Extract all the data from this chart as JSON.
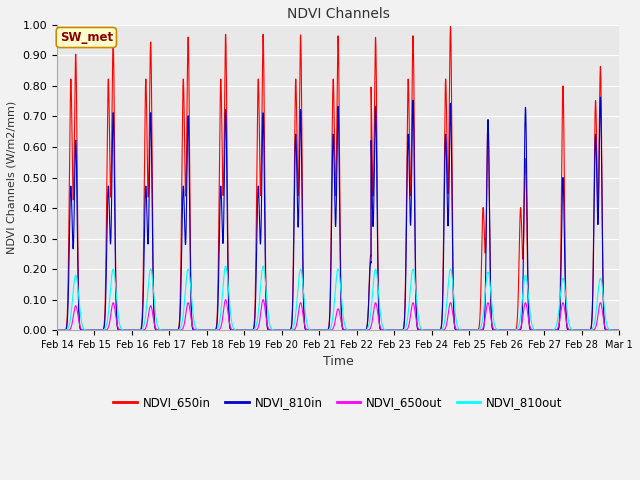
{
  "title": "NDVI Channels",
  "ylabel": "NDVI Channels (W/m2/mm)",
  "xlabel": "Time",
  "annotation": "SW_met",
  "ylim": [
    0.0,
    1.0
  ],
  "yticks": [
    0.0,
    0.1,
    0.2,
    0.3,
    0.4,
    0.5,
    0.6,
    0.7,
    0.8,
    0.9,
    1.0
  ],
  "colors": {
    "NDVI_650in": "#ff0000",
    "NDVI_810in": "#0000cc",
    "NDVI_650out": "#ff00ff",
    "NDVI_810out": "#00ffff"
  },
  "fig_facecolor": "#f2f2f2",
  "ax_facecolor": "#e8e8e8",
  "num_days": 15,
  "date_start": 14,
  "peaks_650in": [
    0.9,
    0.94,
    0.94,
    0.956,
    0.965,
    0.965,
    0.963,
    0.96,
    0.955,
    0.96,
    0.99,
    0.68,
    0.56,
    0.8,
    0.86
  ],
  "peaks_810in": [
    0.62,
    0.71,
    0.71,
    0.7,
    0.72,
    0.71,
    0.72,
    0.73,
    0.73,
    0.75,
    0.74,
    0.69,
    0.73,
    0.5,
    0.76
  ],
  "peaks_650out": [
    0.08,
    0.09,
    0.08,
    0.09,
    0.1,
    0.1,
    0.09,
    0.07,
    0.09,
    0.09,
    0.09,
    0.09,
    0.09,
    0.09,
    0.09
  ],
  "peaks_810out": [
    0.18,
    0.2,
    0.2,
    0.2,
    0.21,
    0.21,
    0.2,
    0.2,
    0.2,
    0.2,
    0.2,
    0.19,
    0.18,
    0.17,
    0.17
  ],
  "secondary_650in": [
    0.82,
    0.82,
    0.82,
    0.82,
    0.82,
    0.82,
    0.82,
    0.82,
    0.82,
    0.82,
    0.82,
    0.4,
    0.4,
    0.0,
    0.75
  ],
  "secondary_810in": [
    0.47,
    0.47,
    0.47,
    0.47,
    0.47,
    0.47,
    0.64,
    0.64,
    0.64,
    0.64,
    0.64,
    0.0,
    0.0,
    0.0,
    0.64
  ],
  "dip_day": 8,
  "dip_650in": 0.27,
  "dip_810in": 0.27
}
